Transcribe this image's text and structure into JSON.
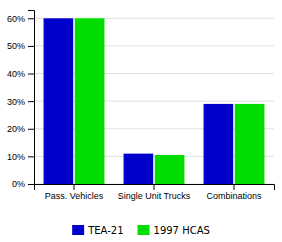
{
  "chart_data": {
    "type": "bar",
    "categories": [
      "Pass. Vehicles",
      "Single Unit Trucks",
      "Combinations"
    ],
    "series": [
      {
        "name": "TEA-21",
        "color": "#0000CC",
        "values": [
          60,
          11,
          29
        ]
      },
      {
        "name": "1997 HCAS",
        "color": "#00DD00",
        "values": [
          60,
          10.5,
          29
        ]
      }
    ],
    "ylim": [
      0,
      63
    ],
    "yticks": [
      {
        "value": 0,
        "label": "0%"
      },
      {
        "value": 10,
        "label": "10%"
      },
      {
        "value": 20,
        "label": "20%"
      },
      {
        "value": 30,
        "label": "30%"
      },
      {
        "value": 40,
        "label": "40%"
      },
      {
        "value": 50,
        "label": "50%"
      },
      {
        "value": 60,
        "label": "60%"
      }
    ],
    "grid": true,
    "legend": "bottom"
  }
}
